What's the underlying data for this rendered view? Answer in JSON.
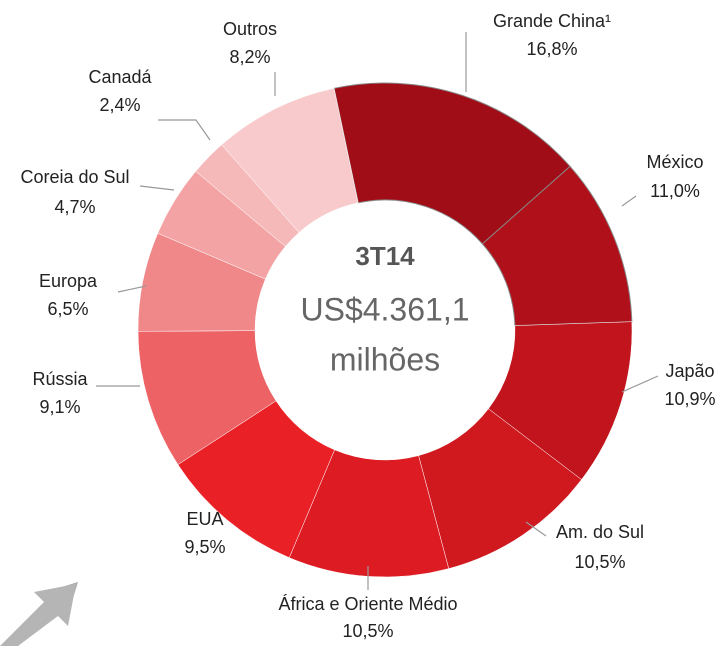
{
  "chart_data": {
    "type": "donut",
    "center_text": [
      "3T14",
      "US$4.361,1",
      "milhões"
    ],
    "categories": [
      "Grande China¹",
      "México",
      "Japão",
      "Am. do Sul",
      "África e Oriente Médio",
      "EUA",
      "Rússia",
      "Europa",
      "Coreia do Sul",
      "Canadá",
      "Outros"
    ],
    "values": [
      16.8,
      11.0,
      10.9,
      10.5,
      10.5,
      9.5,
      9.1,
      6.5,
      4.7,
      2.4,
      8.2
    ],
    "value_labels": [
      "16,8%",
      "11,0%",
      "10,9%",
      "10,5%",
      "10,5%",
      "9,5%",
      "9,1%",
      "6,5%",
      "4,7%",
      "2,4%",
      "8,2%"
    ],
    "colors": [
      "#a00d16",
      "#b01019",
      "#c1141c",
      "#d0181f",
      "#dc1b22",
      "#ea2027",
      "#ed6264",
      "#f08889",
      "#f3a3a4",
      "#f6b9ba",
      "#f8cacb"
    ]
  }
}
